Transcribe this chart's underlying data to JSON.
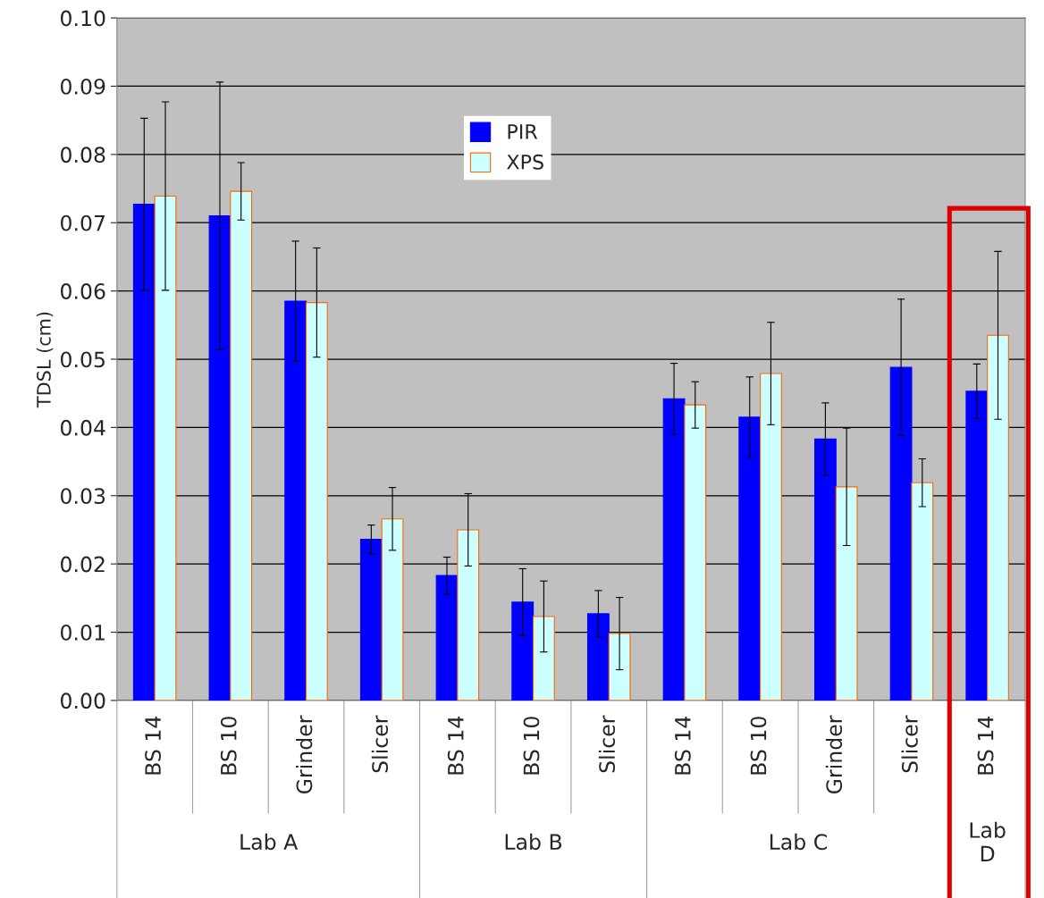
{
  "chart_data": {
    "type": "bar",
    "ylabel": "TDSL (cm)",
    "categories": [
      "BS 14",
      "BS 10",
      "Grinder",
      "Slicer",
      "BS 14",
      "BS 10",
      "Slicer",
      "BS 14",
      "BS 10",
      "Grinder",
      "Slicer",
      "BS 14"
    ],
    "ylim": [
      0,
      0.1
    ],
    "yticks": [
      {
        "value": 0,
        "label": "0.00"
      },
      {
        "value": 0.01,
        "label": "0.01"
      },
      {
        "value": 0.02,
        "label": "0.02"
      },
      {
        "value": 0.03,
        "label": "0.03"
      },
      {
        "value": 0.04,
        "label": "0.04"
      },
      {
        "value": 0.05,
        "label": "0.05"
      },
      {
        "value": 0.06,
        "label": "0.06"
      },
      {
        "value": 0.07,
        "label": "0.07"
      },
      {
        "value": 0.08,
        "label": "0.08"
      },
      {
        "value": 0.09,
        "label": "0.09"
      },
      {
        "value": 0.1,
        "label": "0.10"
      }
    ],
    "series": [
      {
        "name": "PIR",
        "color": "#0000ff",
        "values": [
          0.0727,
          0.071,
          0.0585,
          0.0236,
          0.0183,
          0.0144,
          0.0127,
          0.0442,
          0.0415,
          0.0383,
          0.0488,
          0.0453
        ],
        "errors": [
          0.0126,
          0.0196,
          0.0088,
          0.0021,
          0.0027,
          0.0049,
          0.0034,
          0.0052,
          0.0059,
          0.0053,
          0.01,
          0.004
        ]
      },
      {
        "name": "XPS",
        "color": "#ccffff",
        "values": [
          0.0739,
          0.0746,
          0.0583,
          0.0266,
          0.025,
          0.0123,
          0.0098,
          0.0433,
          0.0479,
          0.0313,
          0.0319,
          0.0535
        ],
        "errors": [
          0.0138,
          0.0042,
          0.008,
          0.0046,
          0.0053,
          0.0052,
          0.0053,
          0.0034,
          0.0075,
          0.0086,
          0.0035,
          0.0123
        ]
      }
    ],
    "annotations": [
      "Lab A",
      "Lab B",
      "Lab C",
      "Lab\nD"
    ],
    "grid": "y",
    "legend": "top"
  }
}
